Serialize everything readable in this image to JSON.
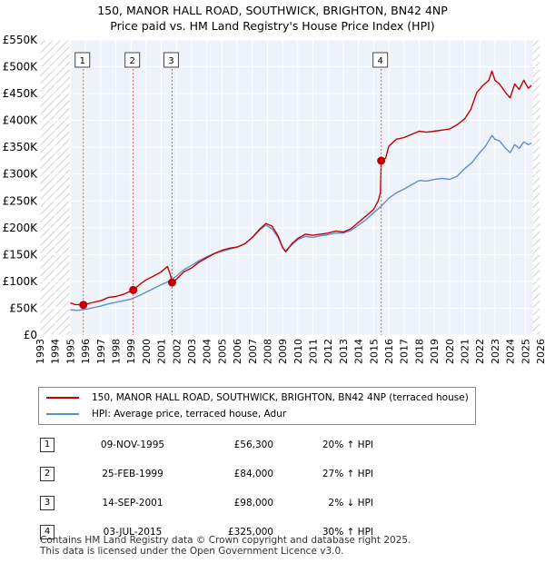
{
  "title_line1": "150, MANOR HALL ROAD, SOUTHWICK, BRIGHTON, BN42 4NP",
  "title_line2": "Price paid vs. HM Land Registry's House Price Index (HPI)",
  "chart_data": {
    "type": "line",
    "xlim": [
      1993,
      2026
    ],
    "ylim": [
      0,
      550000
    ],
    "x_ticks": [
      "1993",
      "1994",
      "1995",
      "1996",
      "1997",
      "1998",
      "1999",
      "2000",
      "2001",
      "2002",
      "2003",
      "2004",
      "2005",
      "2006",
      "2007",
      "2008",
      "2009",
      "2010",
      "2011",
      "2012",
      "2013",
      "2014",
      "2015",
      "2016",
      "2017",
      "2018",
      "2019",
      "2020",
      "2021",
      "2022",
      "2023",
      "2024",
      "2025",
      "2026"
    ],
    "y_ticks": [
      {
        "value": 0,
        "label": "£0"
      },
      {
        "value": 50000,
        "label": "£50K"
      },
      {
        "value": 100000,
        "label": "£100K"
      },
      {
        "value": 150000,
        "label": "£150K"
      },
      {
        "value": 200000,
        "label": "£200K"
      },
      {
        "value": 250000,
        "label": "£250K"
      },
      {
        "value": 300000,
        "label": "£300K"
      },
      {
        "value": 350000,
        "label": "£350K"
      },
      {
        "value": 400000,
        "label": "£400K"
      },
      {
        "value": 450000,
        "label": "£450K"
      },
      {
        "value": 500000,
        "label": "£500K"
      },
      {
        "value": 550000,
        "label": "£550K"
      }
    ],
    "hatched_before": 1995.0,
    "hatched_after": 2025.5,
    "series": [
      {
        "name": "150, MANOR HALL ROAD, SOUTHWICK, BRIGHTON, BN42 4NP (terraced house)",
        "color": "#c00000",
        "points": [
          [
            1995.0,
            60000
          ],
          [
            1995.3,
            57000
          ],
          [
            1995.86,
            56300
          ],
          [
            1996.5,
            61000
          ],
          [
            1997.0,
            64000
          ],
          [
            1997.5,
            70000
          ],
          [
            1998.0,
            72000
          ],
          [
            1998.5,
            76000
          ],
          [
            1999.15,
            84000
          ],
          [
            1999.6,
            95000
          ],
          [
            2000.0,
            103000
          ],
          [
            2000.5,
            110000
          ],
          [
            2001.0,
            118000
          ],
          [
            2001.4,
            128000
          ],
          [
            2001.6,
            112000
          ],
          [
            2001.71,
            98000
          ],
          [
            2002.0,
            104000
          ],
          [
            2002.5,
            118000
          ],
          [
            2003.0,
            125000
          ],
          [
            2003.5,
            136000
          ],
          [
            2004.0,
            144000
          ],
          [
            2004.5,
            152000
          ],
          [
            2005.0,
            158000
          ],
          [
            2005.5,
            162000
          ],
          [
            2006.0,
            164000
          ],
          [
            2006.5,
            170000
          ],
          [
            2007.0,
            182000
          ],
          [
            2007.5,
            198000
          ],
          [
            2007.9,
            208000
          ],
          [
            2008.3,
            203000
          ],
          [
            2008.7,
            185000
          ],
          [
            2009.0,
            163000
          ],
          [
            2009.2,
            155000
          ],
          [
            2009.6,
            170000
          ],
          [
            2010.0,
            180000
          ],
          [
            2010.5,
            188000
          ],
          [
            2011.0,
            186000
          ],
          [
            2011.5,
            188000
          ],
          [
            2012.0,
            190000
          ],
          [
            2012.5,
            194000
          ],
          [
            2013.0,
            192000
          ],
          [
            2013.5,
            198000
          ],
          [
            2014.0,
            210000
          ],
          [
            2014.5,
            222000
          ],
          [
            2015.0,
            234000
          ],
          [
            2015.3,
            250000
          ],
          [
            2015.45,
            265000
          ],
          [
            2015.5,
            325000
          ],
          [
            2015.8,
            330000
          ],
          [
            2016.0,
            352000
          ],
          [
            2016.5,
            365000
          ],
          [
            2017.0,
            368000
          ],
          [
            2017.5,
            374000
          ],
          [
            2018.0,
            380000
          ],
          [
            2018.5,
            378000
          ],
          [
            2019.0,
            380000
          ],
          [
            2019.5,
            382000
          ],
          [
            2020.0,
            384000
          ],
          [
            2020.5,
            392000
          ],
          [
            2021.0,
            403000
          ],
          [
            2021.4,
            420000
          ],
          [
            2021.8,
            452000
          ],
          [
            2022.2,
            465000
          ],
          [
            2022.6,
            475000
          ],
          [
            2022.8,
            492000
          ],
          [
            2023.0,
            475000
          ],
          [
            2023.3,
            468000
          ],
          [
            2023.7,
            452000
          ],
          [
            2024.0,
            442000
          ],
          [
            2024.3,
            468000
          ],
          [
            2024.6,
            458000
          ],
          [
            2024.9,
            475000
          ],
          [
            2025.2,
            460000
          ],
          [
            2025.4,
            465000
          ]
        ]
      },
      {
        "name": "HPI: Average price, terraced house, Adur",
        "color": "#5b8fcf",
        "points": [
          [
            1995.0,
            47000
          ],
          [
            1995.5,
            46000
          ],
          [
            1996.0,
            48000
          ],
          [
            1996.5,
            51000
          ],
          [
            1997.0,
            54000
          ],
          [
            1997.5,
            58000
          ],
          [
            1998.0,
            61000
          ],
          [
            1998.5,
            64000
          ],
          [
            1999.0,
            67000
          ],
          [
            1999.5,
            73000
          ],
          [
            2000.0,
            80000
          ],
          [
            2000.5,
            87000
          ],
          [
            2001.0,
            94000
          ],
          [
            2001.5,
            100000
          ],
          [
            2002.0,
            110000
          ],
          [
            2002.5,
            122000
          ],
          [
            2003.0,
            130000
          ],
          [
            2003.5,
            139000
          ],
          [
            2004.0,
            146000
          ],
          [
            2004.5,
            152000
          ],
          [
            2005.0,
            156000
          ],
          [
            2005.5,
            160000
          ],
          [
            2006.0,
            164000
          ],
          [
            2006.5,
            170000
          ],
          [
            2007.0,
            182000
          ],
          [
            2007.5,
            196000
          ],
          [
            2007.9,
            205000
          ],
          [
            2008.3,
            198000
          ],
          [
            2008.7,
            182000
          ],
          [
            2009.0,
            163000
          ],
          [
            2009.2,
            157000
          ],
          [
            2009.6,
            168000
          ],
          [
            2010.0,
            178000
          ],
          [
            2010.5,
            184000
          ],
          [
            2011.0,
            182000
          ],
          [
            2011.5,
            185000
          ],
          [
            2012.0,
            187000
          ],
          [
            2012.5,
            190000
          ],
          [
            2013.0,
            190000
          ],
          [
            2013.5,
            195000
          ],
          [
            2014.0,
            205000
          ],
          [
            2014.5,
            215000
          ],
          [
            2015.0,
            228000
          ],
          [
            2015.5,
            240000
          ],
          [
            2016.0,
            255000
          ],
          [
            2016.5,
            265000
          ],
          [
            2017.0,
            272000
          ],
          [
            2017.5,
            280000
          ],
          [
            2018.0,
            288000
          ],
          [
            2018.5,
            287000
          ],
          [
            2019.0,
            290000
          ],
          [
            2019.5,
            292000
          ],
          [
            2020.0,
            290000
          ],
          [
            2020.5,
            296000
          ],
          [
            2021.0,
            310000
          ],
          [
            2021.5,
            322000
          ],
          [
            2022.0,
            340000
          ],
          [
            2022.4,
            353000
          ],
          [
            2022.8,
            372000
          ],
          [
            2023.0,
            365000
          ],
          [
            2023.3,
            362000
          ],
          [
            2023.7,
            348000
          ],
          [
            2024.0,
            340000
          ],
          [
            2024.3,
            355000
          ],
          [
            2024.6,
            348000
          ],
          [
            2024.9,
            360000
          ],
          [
            2025.2,
            355000
          ],
          [
            2025.4,
            358000
          ]
        ]
      }
    ],
    "sales": [
      {
        "n": "1",
        "x": 1995.86,
        "y": 56300
      },
      {
        "n": "2",
        "x": 1999.15,
        "y": 84000
      },
      {
        "n": "3",
        "x": 2001.71,
        "y": 98000
      },
      {
        "n": "4",
        "x": 2015.5,
        "y": 325000
      }
    ]
  },
  "legend": {
    "property_label": "150, MANOR HALL ROAD, SOUTHWICK, BRIGHTON, BN42 4NP (terraced house)",
    "hpi_label": "HPI: Average price, terraced house, Adur",
    "property_color": "#c00000",
    "hpi_color": "#5b8fcf"
  },
  "table": [
    {
      "n": "1",
      "date": "09-NOV-1995",
      "price": "£56,300",
      "hpi": "20% ↑ HPI"
    },
    {
      "n": "2",
      "date": "25-FEB-1999",
      "price": "£84,000",
      "hpi": "27% ↑ HPI"
    },
    {
      "n": "3",
      "date": "14-SEP-2001",
      "price": "£98,000",
      "hpi": "2% ↓ HPI"
    },
    {
      "n": "4",
      "date": "03-JUL-2015",
      "price": "£325,000",
      "hpi": "30% ↑ HPI"
    }
  ],
  "footer_line1": "Contains HM Land Registry data © Crown copyright and database right 2025.",
  "footer_line2": "This data is licensed under the Open Government Licence v3.0."
}
